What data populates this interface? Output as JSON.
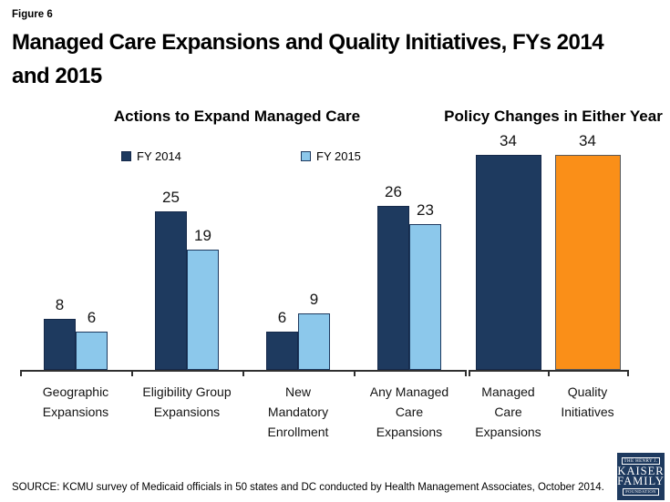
{
  "figure_label": "Figure 6",
  "title_lines": [
    "Managed Care Expansions and Quality Initiatives, FYs 2014",
    "and 2015"
  ],
  "source": "SOURCE: KCMU survey of Medicaid officials in 50 states and DC conducted by Health Management Associates, October 2014.",
  "logo": {
    "top": "THE HENRY J.",
    "name1": "KAISER",
    "name2": "FAMILY",
    "bottom": "FOUNDATION"
  },
  "colors": {
    "navy": "#1E3A5F",
    "navy_border": "#15294a",
    "light_blue": "#8CC8EB",
    "blue_border": "#1E3A5F",
    "orange": "#FA8F18",
    "orange_border": "#58595B",
    "axis": "#303030"
  },
  "legend": [
    {
      "label": "FY 2014",
      "color_key": "navy"
    },
    {
      "label": "FY 2015",
      "color_key": "light_blue"
    }
  ],
  "chart_data": [
    {
      "type": "bar",
      "title": "Actions to Expand Managed Care",
      "categories": [
        "Geographic Expansions",
        "Eligibility Group Expansions",
        "New Mandatory Enrollment",
        "Any Managed Care Expansions"
      ],
      "category_lines": [
        [
          "Geographic",
          "Expansions"
        ],
        [
          "Eligibility Group",
          "Expansions"
        ],
        [
          "New",
          "Mandatory",
          "Enrollment"
        ],
        [
          "Any Managed",
          "Care",
          "Expansions"
        ]
      ],
      "series": [
        {
          "name": "FY 2014",
          "color_key": "navy",
          "values": [
            8,
            25,
            6,
            26
          ]
        },
        {
          "name": "FY 2015",
          "color_key": "light_blue",
          "values": [
            6,
            19,
            9,
            23
          ]
        }
      ],
      "ylim": [
        0,
        36
      ],
      "grid": false,
      "legend_position": "top",
      "data_labels": true
    },
    {
      "type": "bar",
      "title": "Policy Changes in Either Year",
      "categories": [
        "Managed Care Expansions",
        "Quality Initiatives"
      ],
      "category_lines": [
        [
          "Managed",
          "Care",
          "Expansions"
        ],
        [
          "Quality",
          "Initiatives"
        ]
      ],
      "values": [
        34,
        34
      ],
      "bar_color_keys": [
        "navy",
        "orange"
      ],
      "ylim": [
        0,
        36
      ],
      "grid": false,
      "data_labels": true
    }
  ]
}
